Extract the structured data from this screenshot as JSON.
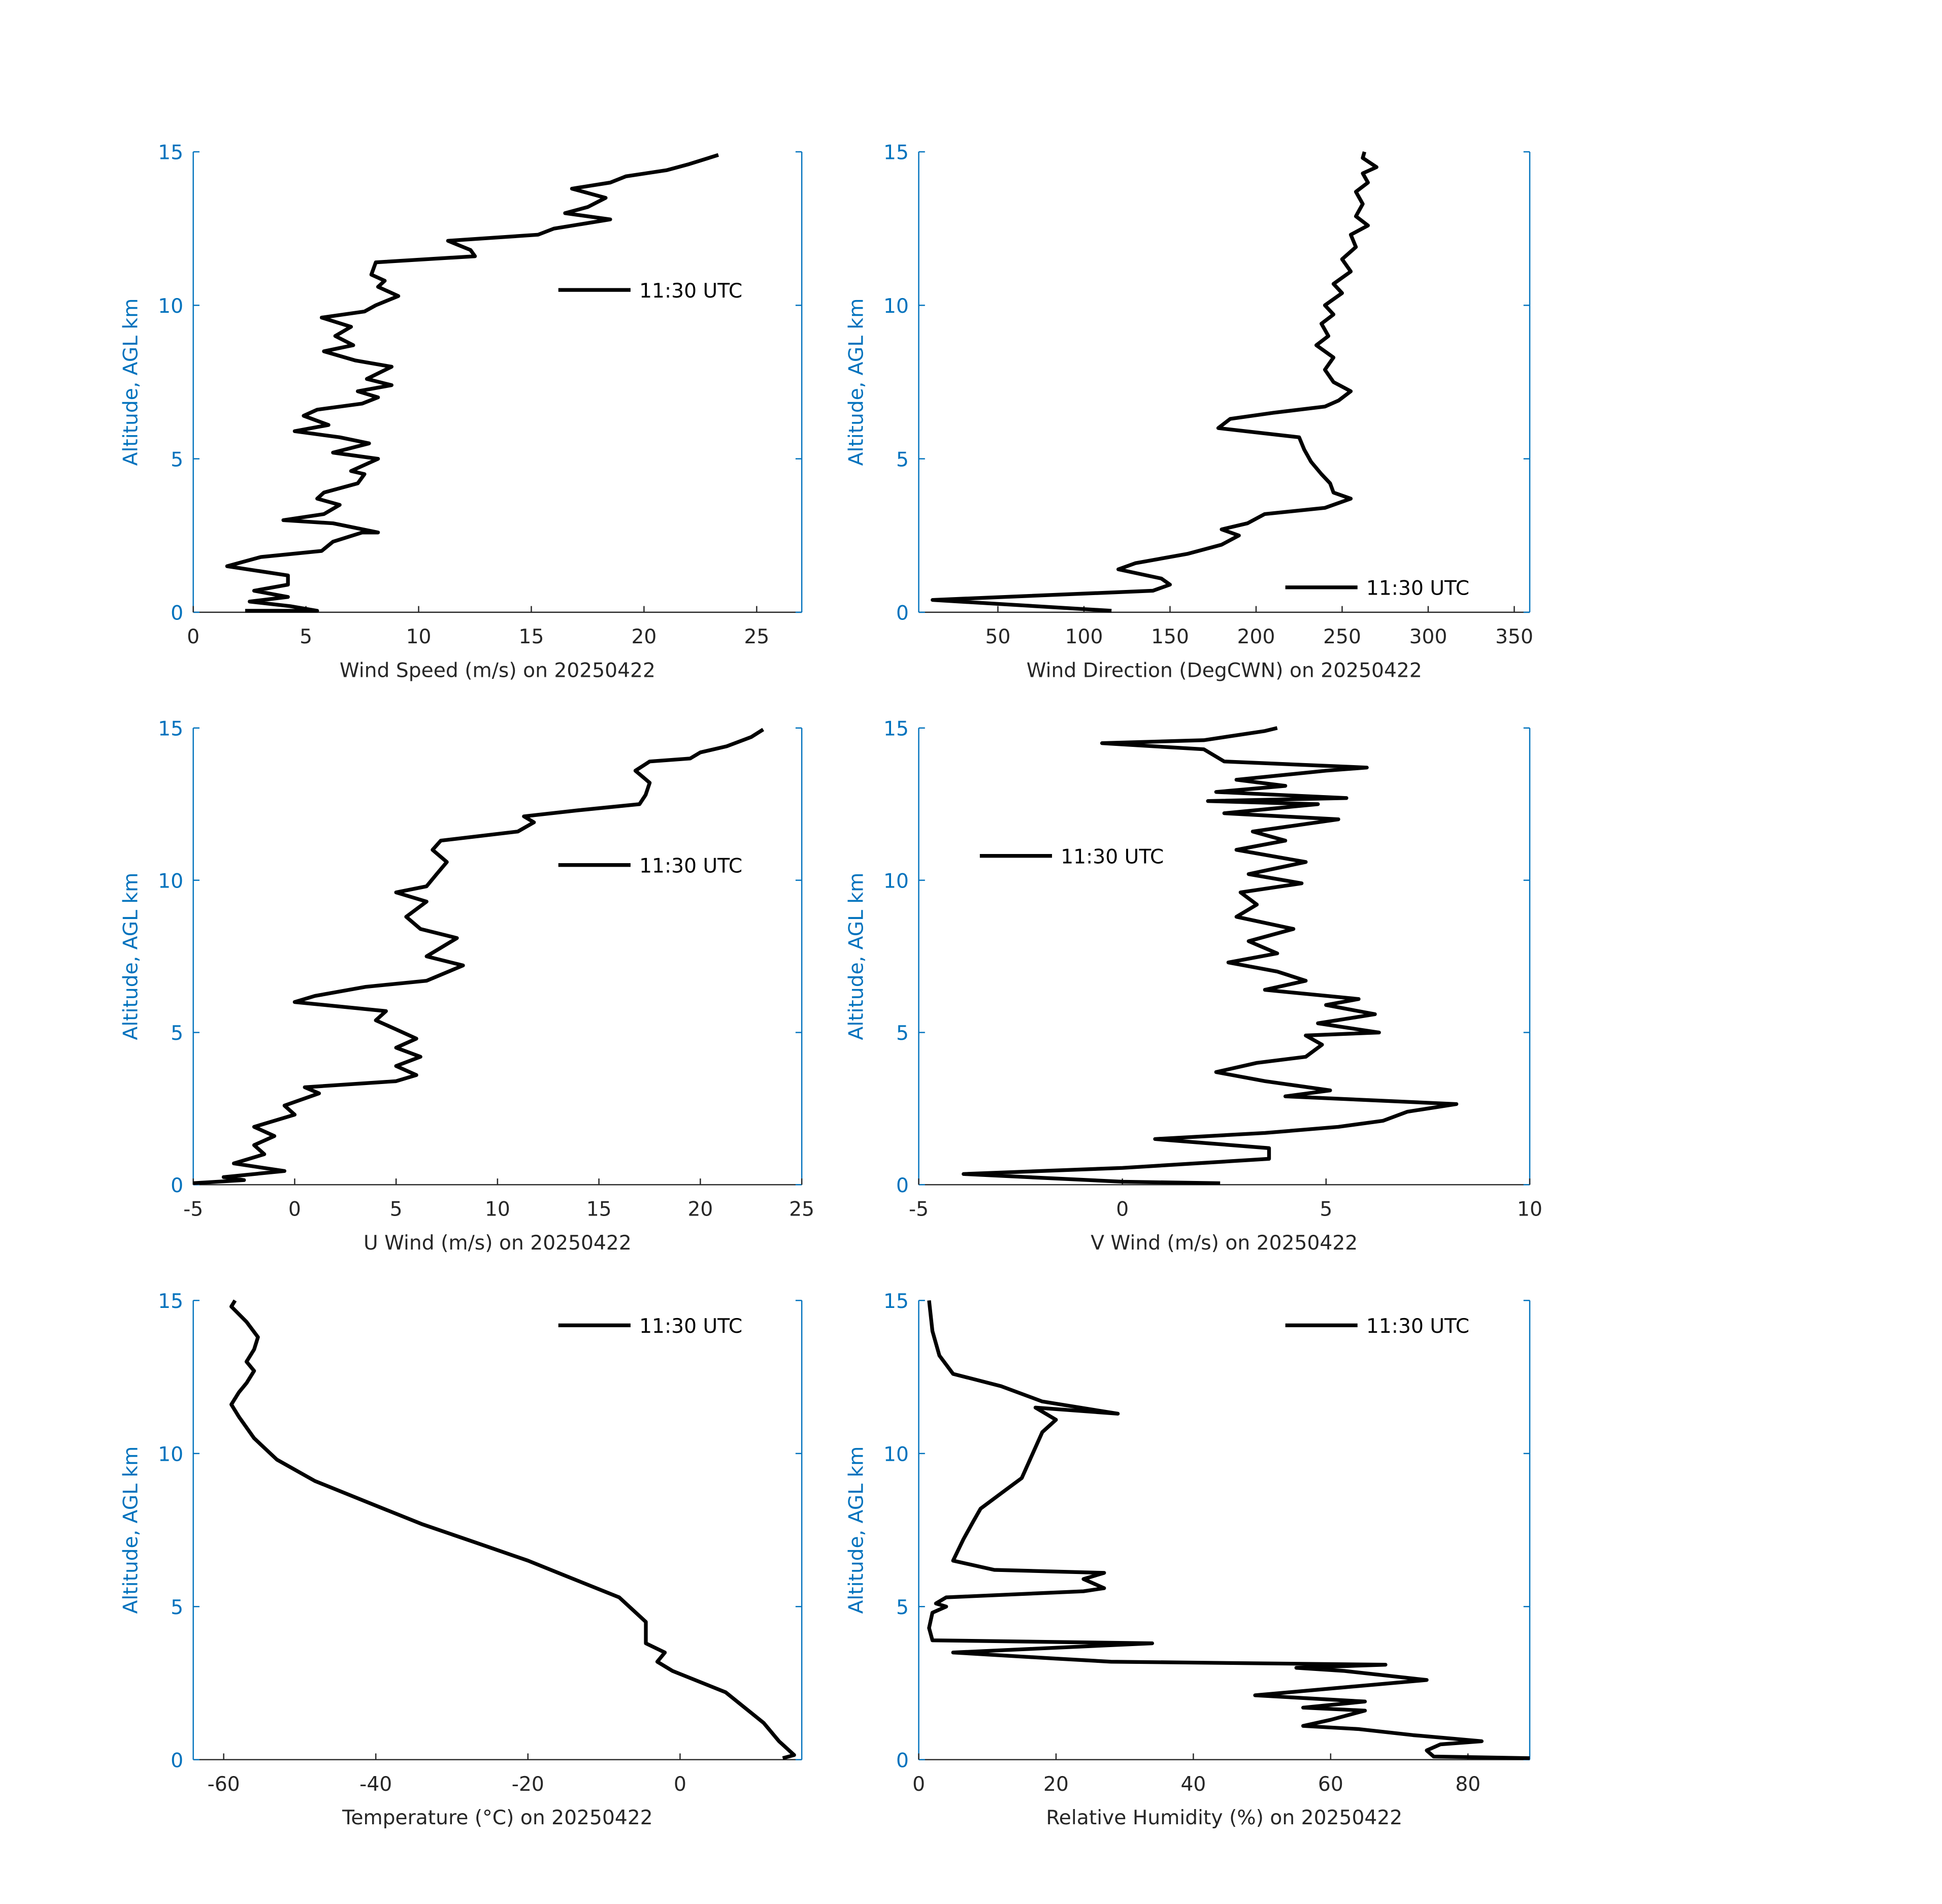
{
  "chart_data": [
    {
      "type": "line",
      "xlabel": "Wind Speed (m/s) on 20250422",
      "ylabel": "Altitude, AGL km",
      "xlim": [
        0,
        27
      ],
      "ylim": [
        0,
        15
      ],
      "xticks": [
        0,
        5,
        10,
        15,
        20,
        25
      ],
      "yticks": [
        0,
        5,
        10,
        15
      ],
      "legend": "right",
      "axis_color": "#0072bd",
      "series": [
        {
          "name": "11:30 UTC",
          "color": "#000000",
          "x": [
            2.3,
            5.5,
            4.3,
            2.5,
            4.2,
            2.7,
            4.2,
            4.2,
            1.5,
            3,
            5.7,
            6.2,
            7.5,
            8.2,
            6.2,
            4.0,
            5.8,
            6.5,
            5.5,
            5.8,
            7.3,
            7.6,
            7,
            8.2,
            6.2,
            7.8,
            6.5,
            4.5,
            6,
            4.9,
            5.5,
            7.5,
            8.2,
            7.3,
            8.8,
            7.7,
            8.8,
            7.2,
            5.8,
            7.1,
            6.3,
            7.0,
            5.7,
            7.6,
            8.1,
            9.1,
            8.2,
            8.5,
            7.9,
            8.1,
            12.5,
            12.3,
            11.3,
            15.3,
            16,
            18.5,
            16.5,
            17.5,
            18.3,
            16.8,
            18.5,
            19.2,
            21,
            22,
            23.3
          ],
          "values": [
            0.05,
            0.05,
            0.2,
            0.35,
            0.5,
            0.7,
            0.9,
            1.2,
            1.5,
            1.8,
            2.0,
            2.3,
            2.6,
            2.6,
            2.9,
            3.0,
            3.2,
            3.5,
            3.7,
            3.9,
            4.2,
            4.5,
            4.6,
            5.0,
            5.2,
            5.5,
            5.7,
            5.9,
            6.1,
            6.4,
            6.6,
            6.8,
            7.0,
            7.2,
            7.4,
            7.6,
            8.0,
            8.2,
            8.5,
            8.7,
            9.0,
            9.3,
            9.6,
            9.8,
            10.0,
            10.3,
            10.6,
            10.8,
            11.0,
            11.4,
            11.6,
            11.8,
            12.1,
            12.3,
            12.5,
            12.8,
            13.0,
            13.2,
            13.5,
            13.8,
            14.0,
            14.2,
            14.4,
            14.6,
            14.9
          ]
        }
      ]
    },
    {
      "type": "line",
      "xlabel": "Wind Direction (DegCWN) on 20250422",
      "ylabel": "Altitude, AGL km",
      "xlim": [
        4,
        359
      ],
      "ylim": [
        0,
        15
      ],
      "xticks": [
        50,
        100,
        150,
        200,
        250,
        300,
        350
      ],
      "yticks": [
        0,
        5,
        10,
        15
      ],
      "legend": "lower right",
      "axis_color": "#0072bd",
      "series": [
        {
          "name": "11:30 UTC",
          "color": "#000000",
          "x": [
            116,
            12,
            140,
            150,
            145,
            120,
            130,
            160,
            180,
            190,
            180,
            195,
            205,
            240,
            255,
            245,
            243,
            238,
            232,
            228,
            225,
            178,
            185,
            210,
            240,
            248,
            255,
            245,
            240,
            245,
            235,
            242,
            238,
            245,
            240,
            250,
            245,
            255,
            250,
            258,
            255,
            265,
            258,
            262,
            258,
            265,
            262,
            270,
            262,
            263
          ],
          "values": [
            0.05,
            0.4,
            0.7,
            0.9,
            1.1,
            1.4,
            1.6,
            1.9,
            2.2,
            2.5,
            2.7,
            2.9,
            3.2,
            3.4,
            3.7,
            3.9,
            4.2,
            4.5,
            4.9,
            5.3,
            5.7,
            6.0,
            6.3,
            6.5,
            6.7,
            6.9,
            7.2,
            7.5,
            7.9,
            8.3,
            8.7,
            9.0,
            9.4,
            9.7,
            10.0,
            10.4,
            10.7,
            11.1,
            11.5,
            11.9,
            12.3,
            12.6,
            12.9,
            13.3,
            13.7,
            14.0,
            14.3,
            14.5,
            14.8,
            15.0
          ]
        }
      ]
    },
    {
      "type": "line",
      "xlabel": "U Wind (m/s) on 20250422",
      "ylabel": "Altitude, AGL km",
      "xlim": [
        -5,
        25
      ],
      "ylim": [
        0,
        15
      ],
      "xticks": [
        -5,
        0,
        5,
        10,
        15,
        20,
        25
      ],
      "yticks": [
        0,
        5,
        10,
        15
      ],
      "legend": "right",
      "axis_color": "#0072bd",
      "series": [
        {
          "name": "11:30 UTC",
          "color": "#000000",
          "x": [
            -5,
            -2.5,
            -3.5,
            -0.5,
            -3,
            -1.5,
            -2,
            -1,
            -2,
            0,
            -0.5,
            1.2,
            0.5,
            5,
            6,
            5,
            6.2,
            5,
            6,
            5,
            4,
            4.5,
            0,
            1,
            3.5,
            6.5,
            8.3,
            6.5,
            8,
            6.2,
            5.5,
            6.5,
            5,
            6.5,
            7,
            7.5,
            6.8,
            7.2,
            11,
            11.8,
            11.3,
            14,
            17,
            17.3,
            17.5,
            16.8,
            17.5,
            19.5,
            20,
            21.3,
            22.5,
            23.1
          ],
          "values": [
            0.05,
            0.15,
            0.25,
            0.45,
            0.7,
            1.0,
            1.3,
            1.6,
            1.9,
            2.3,
            2.6,
            3.0,
            3.2,
            3.4,
            3.6,
            3.9,
            4.2,
            4.5,
            4.8,
            5.1,
            5.4,
            5.7,
            6.0,
            6.2,
            6.5,
            6.7,
            7.2,
            7.5,
            8.1,
            8.4,
            8.8,
            9.3,
            9.6,
            9.8,
            10.2,
            10.6,
            11.0,
            11.3,
            11.6,
            11.9,
            12.1,
            12.3,
            12.5,
            12.8,
            13.2,
            13.6,
            13.9,
            14.0,
            14.2,
            14.4,
            14.7,
            14.95
          ]
        }
      ]
    },
    {
      "type": "line",
      "xlabel": "V Wind (m/s) on 20250422",
      "ylabel": "Altitude, AGL km",
      "xlim": [
        -5,
        10
      ],
      "ylim": [
        0,
        15
      ],
      "xticks": [
        -5,
        0,
        5,
        10
      ],
      "yticks": [
        0,
        5,
        10,
        15
      ],
      "legend": "upper left",
      "axis_color": "#0072bd",
      "series": [
        {
          "name": "11:30 UTC",
          "color": "#000000",
          "x": [
            2.4,
            0,
            -3.9,
            0,
            3.6,
            3.6,
            0.8,
            3.5,
            5.3,
            6.4,
            7,
            8.2,
            4,
            5.1,
            3.5,
            2.3,
            3.3,
            4.5,
            4.9,
            4.5,
            6.3,
            4.8,
            6.2,
            5,
            5.8,
            3.5,
            4.5,
            3.8,
            2.6,
            3.8,
            3.1,
            4.2,
            2.8,
            3.3,
            2.9,
            4.4,
            3.1,
            4.5,
            2.8,
            4.0,
            3.2,
            5.3,
            2.5,
            4.8,
            2.1,
            5.5,
            2.3,
            4.0,
            2.8,
            5,
            6,
            2.5,
            2,
            -0.5,
            2,
            3.5,
            3.8
          ],
          "values": [
            0.05,
            0.1,
            0.35,
            0.55,
            0.85,
            1.2,
            1.5,
            1.7,
            1.9,
            2.1,
            2.4,
            2.65,
            2.9,
            3.1,
            3.4,
            3.7,
            4.0,
            4.2,
            4.6,
            4.9,
            5.0,
            5.3,
            5.6,
            5.9,
            6.1,
            6.4,
            6.7,
            7.0,
            7.3,
            7.6,
            8.0,
            8.4,
            8.8,
            9.2,
            9.6,
            9.9,
            10.2,
            10.6,
            11.0,
            11.3,
            11.6,
            12.0,
            12.2,
            12.5,
            12.6,
            12.7,
            12.9,
            13.1,
            13.3,
            13.6,
            13.7,
            13.9,
            14.3,
            14.5,
            14.6,
            14.9,
            15.0
          ]
        }
      ]
    },
    {
      "type": "line",
      "xlabel": "Temperature (°C) on 20250422",
      "ylabel": "Altitude, AGL km",
      "xlim": [
        -64,
        16
      ],
      "ylim": [
        0,
        15
      ],
      "xticks": [
        -60,
        -40,
        -20,
        0
      ],
      "yticks": [
        0,
        5,
        10,
        15
      ],
      "legend": "upper right",
      "axis_color": "#0072bd",
      "series": [
        {
          "name": "11:30 UTC",
          "color": "#000000",
          "x": [
            13.5,
            15,
            13,
            11,
            6,
            -1,
            -3,
            -2,
            -4.5,
            -4.5,
            -8,
            -15,
            -20,
            -27,
            -34,
            -41,
            -48,
            -53,
            -56,
            -58,
            -59,
            -58,
            -57,
            -56,
            -57,
            -56,
            -55.5,
            -57,
            -59,
            -58.5
          ],
          "values": [
            0.05,
            0.15,
            0.6,
            1.2,
            2.2,
            2.9,
            3.2,
            3.5,
            3.8,
            4.5,
            5.3,
            6,
            6.5,
            7.1,
            7.7,
            8.4,
            9.1,
            9.8,
            10.5,
            11.2,
            11.6,
            12.0,
            12.3,
            12.7,
            13.0,
            13.4,
            13.8,
            14.3,
            14.8,
            15.0
          ]
        }
      ]
    },
    {
      "type": "line",
      "xlabel": "Relative Humidity (%) on 20250422",
      "ylabel": "Altitude, AGL km",
      "xlim": [
        0,
        89
      ],
      "ylim": [
        0,
        15
      ],
      "xticks": [
        0,
        20,
        40,
        60,
        80
      ],
      "yticks": [
        0,
        5,
        10,
        15
      ],
      "legend": "upper right",
      "axis_color": "#0072bd",
      "series": [
        {
          "name": "11:30 UTC",
          "color": "#000000",
          "x": [
            89,
            75,
            74,
            76,
            82,
            72,
            64,
            56,
            60,
            65,
            56,
            65,
            49,
            74,
            62,
            55,
            68,
            28,
            20,
            5,
            34,
            2,
            1.5,
            2,
            4,
            2.5,
            4,
            24,
            27,
            24,
            27,
            11,
            5,
            6.5,
            8,
            9,
            12,
            15,
            16,
            17,
            18,
            20,
            17,
            29,
            18,
            12,
            5,
            3,
            2,
            1.5
          ],
          "values": [
            0.05,
            0.1,
            0.3,
            0.5,
            0.6,
            0.8,
            1.0,
            1.1,
            1.3,
            1.6,
            1.7,
            1.9,
            2.1,
            2.6,
            2.9,
            3.0,
            3.1,
            3.2,
            3.3,
            3.5,
            3.8,
            3.9,
            4.3,
            4.8,
            5.0,
            5.1,
            5.3,
            5.5,
            5.6,
            5.9,
            6.1,
            6.2,
            6.5,
            7.2,
            7.8,
            8.2,
            8.7,
            9.2,
            9.7,
            10.2,
            10.7,
            11.1,
            11.5,
            11.3,
            11.7,
            12.2,
            12.6,
            13.2,
            14,
            15.0
          ]
        }
      ]
    }
  ]
}
